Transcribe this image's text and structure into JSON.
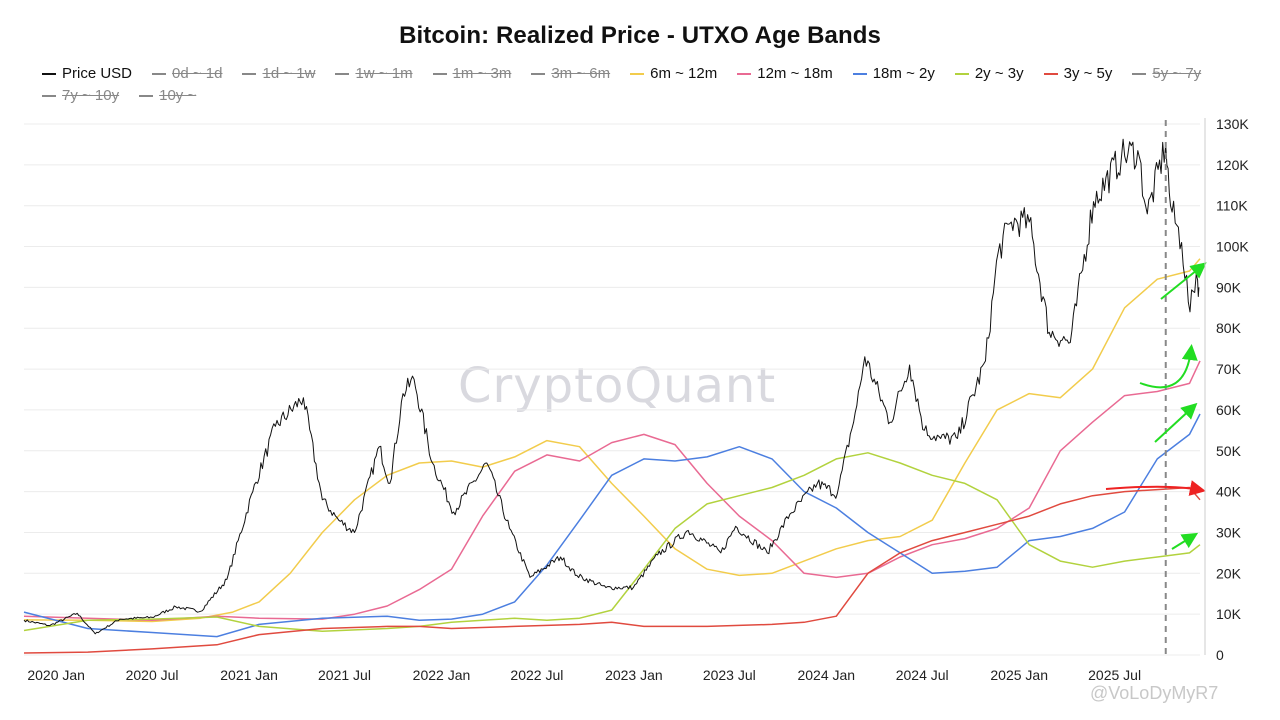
{
  "chart_data": {
    "type": "line",
    "title": "Bitcoin: Realized Price - UTXO Age Bands",
    "y_ticks": [
      "0",
      "10K",
      "20K",
      "30K",
      "40K",
      "50K",
      "60K",
      "70K",
      "80K",
      "90K",
      "100K",
      "110K",
      "120K",
      "130K"
    ],
    "ylim": [
      0,
      130000
    ],
    "x_ticks": [
      "2020 Jan",
      "2020 Jul",
      "2021 Jan",
      "2021 Jul",
      "2022 Jan",
      "2022 Jul",
      "2023 Jan",
      "2023 Jul",
      "2024 Jan",
      "2024 Jul",
      "2025 Jan",
      "2025 Jul"
    ],
    "xlim": [
      "2019-11-01",
      "2025-12-10"
    ],
    "legend_placement": "top",
    "grid": "horizontal",
    "vline_date": "2025-10-06",
    "series": [
      {
        "name": "Price USD",
        "color": "#111111",
        "active": true,
        "width": 1,
        "points": [
          [
            "2019-11-01",
            8500
          ],
          [
            "2019-12-20",
            7200
          ],
          [
            "2020-02-10",
            10200
          ],
          [
            "2020-03-15",
            5200
          ],
          [
            "2020-05-01",
            8800
          ],
          [
            "2020-07-01",
            9200
          ],
          [
            "2020-08-15",
            11800
          ],
          [
            "2020-10-01",
            10700
          ],
          [
            "2020-11-20",
            18500
          ],
          [
            "2021-01-08",
            40000
          ],
          [
            "2021-02-20",
            56000
          ],
          [
            "2021-04-14",
            63000
          ],
          [
            "2021-05-20",
            38000
          ],
          [
            "2021-06-20",
            33000
          ],
          [
            "2021-07-20",
            30000
          ],
          [
            "2021-09-05",
            51000
          ],
          [
            "2021-09-25",
            42000
          ],
          [
            "2021-10-20",
            64000
          ],
          [
            "2021-11-10",
            67500
          ],
          [
            "2021-12-15",
            47000
          ],
          [
            "2022-01-24",
            35000
          ],
          [
            "2022-03-28",
            47000
          ],
          [
            "2022-05-10",
            31000
          ],
          [
            "2022-06-18",
            19000
          ],
          [
            "2022-08-15",
            24000
          ],
          [
            "2022-09-15",
            19500
          ],
          [
            "2022-11-09",
            16500
          ],
          [
            "2022-12-31",
            16500
          ],
          [
            "2023-02-15",
            24500
          ],
          [
            "2023-04-14",
            30500
          ],
          [
            "2023-06-15",
            25000
          ],
          [
            "2023-07-13",
            31500
          ],
          [
            "2023-09-11",
            25000
          ],
          [
            "2023-10-24",
            34500
          ],
          [
            "2023-12-15",
            42000
          ],
          [
            "2024-01-22",
            39500
          ],
          [
            "2024-02-28",
            61000
          ],
          [
            "2024-03-14",
            73000
          ],
          [
            "2024-05-01",
            57000
          ],
          [
            "2024-06-07",
            71000
          ],
          [
            "2024-07-05",
            55000
          ],
          [
            "2024-08-05",
            53000
          ],
          [
            "2024-09-06",
            53000
          ],
          [
            "2024-10-29",
            72000
          ],
          [
            "2024-11-22",
            98500
          ],
          [
            "2024-12-17",
            106000
          ],
          [
            "2025-01-20",
            106000
          ],
          [
            "2025-02-27",
            79000
          ],
          [
            "2025-04-08",
            76500
          ],
          [
            "2025-05-22",
            111000
          ],
          [
            "2025-07-14",
            122000
          ],
          [
            "2025-08-14",
            123500
          ],
          [
            "2025-09-01",
            108000
          ],
          [
            "2025-10-06",
            125000
          ],
          [
            "2025-10-15",
            110000
          ],
          [
            "2025-11-05",
            101000
          ],
          [
            "2025-11-21",
            84000
          ],
          [
            "2025-12-03",
            93500
          ],
          [
            "2025-12-08",
            90000
          ]
        ]
      },
      {
        "name": "0d ~ 1d",
        "color": "#888888",
        "active": false,
        "points": []
      },
      {
        "name": "1d ~ 1w",
        "color": "#888888",
        "active": false,
        "points": []
      },
      {
        "name": "1w ~ 1m",
        "color": "#888888",
        "active": false,
        "points": []
      },
      {
        "name": "1m ~ 3m",
        "color": "#888888",
        "active": false,
        "points": []
      },
      {
        "name": "3m ~ 6m",
        "color": "#888888",
        "active": false,
        "points": []
      },
      {
        "name": "6m ~ 12m",
        "color": "#f2cc4c",
        "active": true,
        "width": 1.5,
        "points": [
          [
            "2019-11-01",
            8600
          ],
          [
            "2020-03-01",
            8500
          ],
          [
            "2020-07-01",
            8200
          ],
          [
            "2020-10-01",
            9000
          ],
          [
            "2020-12-01",
            10500
          ],
          [
            "2021-01-20",
            13000
          ],
          [
            "2021-03-20",
            20000
          ],
          [
            "2021-05-20",
            30000
          ],
          [
            "2021-07-20",
            38000
          ],
          [
            "2021-09-20",
            44000
          ],
          [
            "2021-11-20",
            47000
          ],
          [
            "2022-01-20",
            47500
          ],
          [
            "2022-03-20",
            46000
          ],
          [
            "2022-05-20",
            48500
          ],
          [
            "2022-07-20",
            52500
          ],
          [
            "2022-09-20",
            51000
          ],
          [
            "2022-11-20",
            42000
          ],
          [
            "2023-01-20",
            34000
          ],
          [
            "2023-03-20",
            26000
          ],
          [
            "2023-05-20",
            21000
          ],
          [
            "2023-07-20",
            19500
          ],
          [
            "2023-09-20",
            20000
          ],
          [
            "2023-11-20",
            23000
          ],
          [
            "2024-01-20",
            26000
          ],
          [
            "2024-03-20",
            28000
          ],
          [
            "2024-05-20",
            29000
          ],
          [
            "2024-07-20",
            33000
          ],
          [
            "2024-09-20",
            47000
          ],
          [
            "2024-11-20",
            60000
          ],
          [
            "2025-01-20",
            64000
          ],
          [
            "2025-03-20",
            63000
          ],
          [
            "2025-05-20",
            70000
          ],
          [
            "2025-07-20",
            85000
          ],
          [
            "2025-09-20",
            92000
          ],
          [
            "2025-11-20",
            94000
          ],
          [
            "2025-12-10",
            97000
          ]
        ]
      },
      {
        "name": "12m ~ 18m",
        "color": "#e96a93",
        "active": true,
        "width": 1.5,
        "points": [
          [
            "2019-11-01",
            9500
          ],
          [
            "2020-03-01",
            9000
          ],
          [
            "2020-07-01",
            8500
          ],
          [
            "2020-11-01",
            9500
          ],
          [
            "2021-01-20",
            9000
          ],
          [
            "2021-05-20",
            8800
          ],
          [
            "2021-07-20",
            10000
          ],
          [
            "2021-09-20",
            12000
          ],
          [
            "2021-11-20",
            16000
          ],
          [
            "2022-01-20",
            21000
          ],
          [
            "2022-03-20",
            34000
          ],
          [
            "2022-05-20",
            45000
          ],
          [
            "2022-07-20",
            49000
          ],
          [
            "2022-09-20",
            47500
          ],
          [
            "2022-11-20",
            52000
          ],
          [
            "2023-01-20",
            54000
          ],
          [
            "2023-03-20",
            51500
          ],
          [
            "2023-05-20",
            42000
          ],
          [
            "2023-07-20",
            34000
          ],
          [
            "2023-09-20",
            28000
          ],
          [
            "2023-11-20",
            20000
          ],
          [
            "2024-01-20",
            19000
          ],
          [
            "2024-03-20",
            20000
          ],
          [
            "2024-05-20",
            24000
          ],
          [
            "2024-07-20",
            27000
          ],
          [
            "2024-09-20",
            28500
          ],
          [
            "2024-11-20",
            31000
          ],
          [
            "2025-01-20",
            36000
          ],
          [
            "2025-03-20",
            50000
          ],
          [
            "2025-05-20",
            57000
          ],
          [
            "2025-07-20",
            63500
          ],
          [
            "2025-09-20",
            64500
          ],
          [
            "2025-11-20",
            66500
          ],
          [
            "2025-12-10",
            72000
          ]
        ]
      },
      {
        "name": "18m ~ 2y",
        "color": "#4c7fe0",
        "active": true,
        "width": 1.5,
        "points": [
          [
            "2019-11-01",
            10500
          ],
          [
            "2020-03-01",
            6500
          ],
          [
            "2020-07-01",
            5500
          ],
          [
            "2020-11-01",
            4500
          ],
          [
            "2021-01-20",
            7500
          ],
          [
            "2021-05-20",
            9000
          ],
          [
            "2021-09-20",
            9500
          ],
          [
            "2021-11-20",
            8500
          ],
          [
            "2022-01-20",
            8800
          ],
          [
            "2022-03-20",
            10000
          ],
          [
            "2022-05-20",
            13000
          ],
          [
            "2022-07-20",
            22000
          ],
          [
            "2022-09-20",
            33000
          ],
          [
            "2022-11-20",
            44000
          ],
          [
            "2023-01-20",
            48000
          ],
          [
            "2023-03-20",
            47500
          ],
          [
            "2023-05-20",
            48500
          ],
          [
            "2023-07-20",
            51000
          ],
          [
            "2023-09-20",
            48000
          ],
          [
            "2023-11-20",
            40000
          ],
          [
            "2024-01-20",
            36000
          ],
          [
            "2024-03-20",
            30000
          ],
          [
            "2024-05-20",
            25000
          ],
          [
            "2024-07-20",
            20000
          ],
          [
            "2024-09-20",
            20500
          ],
          [
            "2024-11-20",
            21500
          ],
          [
            "2025-01-20",
            28000
          ],
          [
            "2025-03-20",
            29000
          ],
          [
            "2025-05-20",
            31000
          ],
          [
            "2025-07-20",
            35000
          ],
          [
            "2025-09-20",
            48000
          ],
          [
            "2025-11-20",
            54000
          ],
          [
            "2025-12-10",
            59000
          ]
        ]
      },
      {
        "name": "2y ~ 3y",
        "color": "#b2d23e",
        "active": true,
        "width": 1.5,
        "points": [
          [
            "2019-11-01",
            6000
          ],
          [
            "2020-03-01",
            8500
          ],
          [
            "2020-07-01",
            8800
          ],
          [
            "2020-11-01",
            9300
          ],
          [
            "2021-01-20",
            7000
          ],
          [
            "2021-05-20",
            5800
          ],
          [
            "2021-09-20",
            6500
          ],
          [
            "2021-11-20",
            7000
          ],
          [
            "2022-01-20",
            8000
          ],
          [
            "2022-03-20",
            8500
          ],
          [
            "2022-05-20",
            9000
          ],
          [
            "2022-07-20",
            8500
          ],
          [
            "2022-09-20",
            9000
          ],
          [
            "2022-11-20",
            11000
          ],
          [
            "2023-01-20",
            21000
          ],
          [
            "2023-03-20",
            31000
          ],
          [
            "2023-05-20",
            37000
          ],
          [
            "2023-07-20",
            39000
          ],
          [
            "2023-09-20",
            41000
          ],
          [
            "2023-11-20",
            44000
          ],
          [
            "2024-01-20",
            48000
          ],
          [
            "2024-03-20",
            49500
          ],
          [
            "2024-05-20",
            47000
          ],
          [
            "2024-07-20",
            44000
          ],
          [
            "2024-09-20",
            42000
          ],
          [
            "2024-11-20",
            38000
          ],
          [
            "2025-01-20",
            27000
          ],
          [
            "2025-03-20",
            23000
          ],
          [
            "2025-05-20",
            21500
          ],
          [
            "2025-07-20",
            23000
          ],
          [
            "2025-09-20",
            24000
          ],
          [
            "2025-11-20",
            25000
          ],
          [
            "2025-12-10",
            27000
          ]
        ]
      },
      {
        "name": "3y ~ 5y",
        "color": "#e04a3f",
        "active": true,
        "width": 1.5,
        "points": [
          [
            "2019-11-01",
            500
          ],
          [
            "2020-03-01",
            700
          ],
          [
            "2020-07-01",
            1500
          ],
          [
            "2020-11-01",
            2500
          ],
          [
            "2021-01-20",
            5000
          ],
          [
            "2021-05-20",
            6500
          ],
          [
            "2021-09-20",
            7000
          ],
          [
            "2021-11-20",
            7000
          ],
          [
            "2022-01-20",
            6500
          ],
          [
            "2022-05-20",
            7000
          ],
          [
            "2022-09-20",
            7500
          ],
          [
            "2022-11-20",
            8000
          ],
          [
            "2023-01-20",
            7000
          ],
          [
            "2023-05-20",
            7000
          ],
          [
            "2023-09-20",
            7500
          ],
          [
            "2023-11-20",
            8000
          ],
          [
            "2024-01-20",
            9500
          ],
          [
            "2024-03-20",
            20000
          ],
          [
            "2024-05-20",
            25000
          ],
          [
            "2024-07-20",
            28000
          ],
          [
            "2024-09-20",
            30000
          ],
          [
            "2024-11-20",
            32000
          ],
          [
            "2025-01-20",
            34000
          ],
          [
            "2025-03-20",
            37000
          ],
          [
            "2025-05-20",
            39000
          ],
          [
            "2025-07-20",
            40000
          ],
          [
            "2025-09-20",
            40500
          ],
          [
            "2025-11-20",
            41000
          ],
          [
            "2025-12-10",
            38000
          ]
        ]
      },
      {
        "name": "5y ~ 7y",
        "color": "#888888",
        "active": false,
        "points": []
      },
      {
        "name": "7y ~ 10y",
        "color": "#888888",
        "active": false,
        "points": []
      },
      {
        "name": "10y ~",
        "color": "#888888",
        "active": false,
        "points": []
      }
    ]
  },
  "watermark": "CryptoQuant",
  "credit": "@VoLoDyMyR7"
}
